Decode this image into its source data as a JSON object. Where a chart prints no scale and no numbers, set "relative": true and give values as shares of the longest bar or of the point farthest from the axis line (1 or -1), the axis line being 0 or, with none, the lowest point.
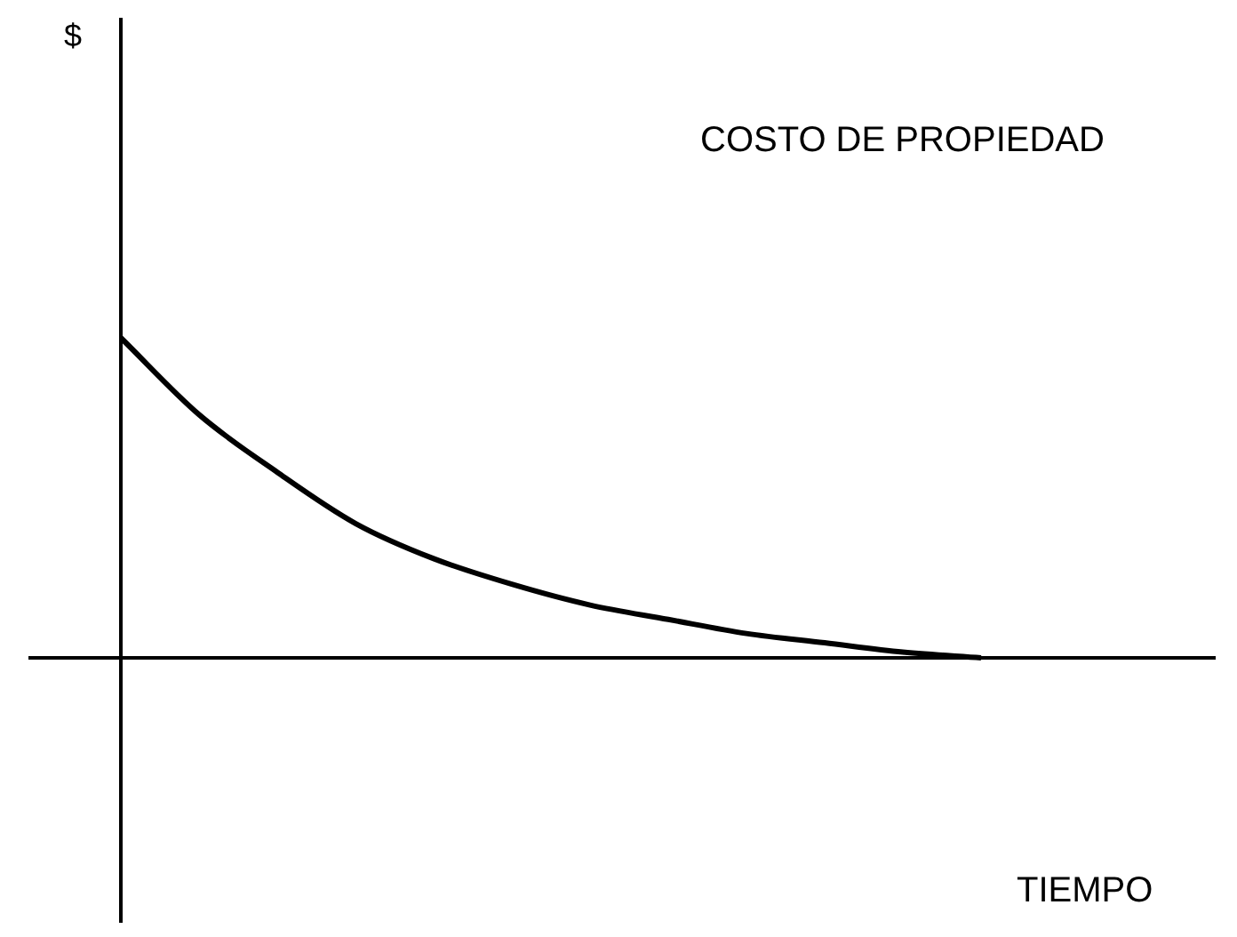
{
  "chart_data": {
    "type": "line",
    "title": "COSTO DE PROPIEDAD",
    "annotations": [
      "$",
      "TIEMPO"
    ],
    "relative": true,
    "categories": [
      null,
      null,
      null,
      null,
      null,
      null,
      null,
      null,
      null,
      null,
      null,
      null,
      null,
      null,
      null
    ],
    "series": [
      {
        "color": "#000000",
        "values": [
          1,
          0.76,
          0.58,
          0.42,
          0.31,
          0.23,
          0.165,
          0.12,
          0.076,
          0.047,
          0.018,
          0,
          null,
          null,
          null
        ]
      }
    ],
    "grid": false,
    "legend": false,
    "marker": "none",
    "line_style": "solid"
  }
}
